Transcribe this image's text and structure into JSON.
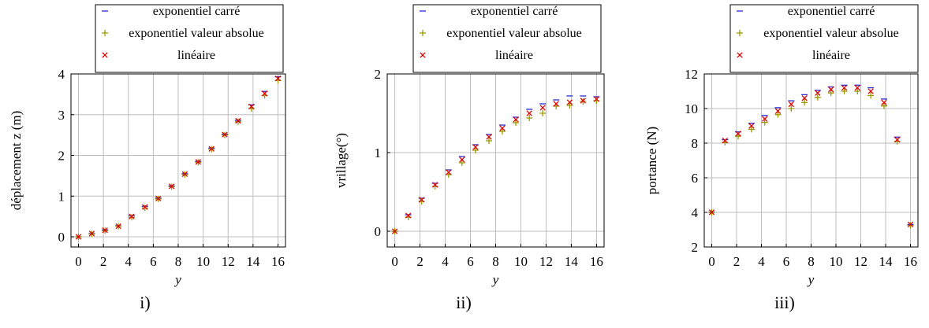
{
  "legend": [
    "exponentiel carré",
    "exponentiel valeur absolue",
    "linéaire"
  ],
  "colors": {
    "exponentiel carré": "#2a2ad6",
    "exponentiel valeur absolue": "#9a9a00",
    "linéaire": "#e00000",
    "grid": "#bdbdbd"
  },
  "captions": [
    "i)",
    "ii)",
    "iii)"
  ],
  "chart_data": [
    {
      "type": "scatter",
      "xlabel": "y",
      "ylabel": "déplacement z (m)",
      "xlim": [
        -0.6,
        16.6
      ],
      "ylim": [
        -0.25,
        4.0
      ],
      "xticks": [
        0,
        2,
        4,
        6,
        8,
        10,
        12,
        14,
        16
      ],
      "yticks": [
        0,
        1,
        2,
        3,
        4
      ],
      "x": [
        0,
        1.07,
        2.13,
        3.2,
        4.27,
        5.33,
        6.4,
        7.47,
        8.53,
        9.6,
        10.67,
        11.73,
        12.8,
        13.87,
        14.93,
        16
      ],
      "series": [
        {
          "name": "exponentiel carré",
          "values": [
            0,
            0.08,
            0.17,
            0.27,
            0.52,
            0.75,
            0.95,
            1.25,
            1.55,
            1.85,
            2.18,
            2.52,
            2.86,
            3.24,
            3.57,
            3.93
          ]
        },
        {
          "name": "exponentiel valeur absolue",
          "values": [
            0,
            0.07,
            0.15,
            0.26,
            0.48,
            0.71,
            0.93,
            1.23,
            1.53,
            1.83,
            2.15,
            2.5,
            2.83,
            3.15,
            3.47,
            3.84
          ]
        },
        {
          "name": "linéaire",
          "values": [
            0,
            0.08,
            0.16,
            0.26,
            0.5,
            0.73,
            0.94,
            1.24,
            1.54,
            1.84,
            2.16,
            2.51,
            2.85,
            3.2,
            3.52,
            3.89
          ]
        }
      ]
    },
    {
      "type": "scatter",
      "xlabel": "y",
      "ylabel": "vrillage(°)",
      "xlim": [
        -0.6,
        16.6
      ],
      "ylim": [
        -0.2,
        2.0
      ],
      "xticks": [
        0,
        2,
        4,
        6,
        8,
        10,
        12,
        14,
        16
      ],
      "yticks": [
        0,
        1,
        2
      ],
      "x": [
        0,
        1.07,
        2.13,
        3.2,
        4.27,
        5.33,
        6.4,
        7.47,
        8.53,
        9.6,
        10.67,
        11.73,
        12.8,
        13.87,
        14.93,
        16
      ],
      "series": [
        {
          "name": "exponentiel carré",
          "values": [
            0,
            0.21,
            0.42,
            0.61,
            0.78,
            0.95,
            1.1,
            1.23,
            1.35,
            1.45,
            1.55,
            1.62,
            1.67,
            1.72,
            1.72,
            1.71
          ]
        },
        {
          "name": "exponentiel valeur absolue",
          "values": [
            0,
            0.18,
            0.38,
            0.57,
            0.72,
            0.87,
            1.03,
            1.15,
            1.27,
            1.38,
            1.44,
            1.5,
            1.59,
            1.6,
            1.65,
            1.66
          ]
        },
        {
          "name": "linéaire",
          "values": [
            0,
            0.2,
            0.4,
            0.59,
            0.75,
            0.91,
            1.07,
            1.2,
            1.31,
            1.42,
            1.5,
            1.57,
            1.62,
            1.64,
            1.66,
            1.68
          ]
        }
      ]
    },
    {
      "type": "scatter",
      "xlabel": "y",
      "ylabel": "portance (N)",
      "xlim": [
        -0.6,
        16.6
      ],
      "ylim": [
        2.0,
        12.0
      ],
      "xticks": [
        0,
        2,
        4,
        6,
        8,
        10,
        12,
        14,
        16
      ],
      "yticks": [
        2,
        4,
        6,
        8,
        10,
        12
      ],
      "x": [
        0,
        1.07,
        2.13,
        3.2,
        4.27,
        5.33,
        6.4,
        7.47,
        8.53,
        9.6,
        10.67,
        11.73,
        12.8,
        13.87,
        14.93,
        16
      ],
      "series": [
        {
          "name": "exponentiel carré",
          "values": [
            4.02,
            8.2,
            8.65,
            9.15,
            9.6,
            10.05,
            10.45,
            10.8,
            11.05,
            11.25,
            11.35,
            11.35,
            11.2,
            10.55,
            8.35,
            3.3
          ]
        },
        {
          "name": "exponentiel valeur absolue",
          "values": [
            4.0,
            8.05,
            8.4,
            8.8,
            9.2,
            9.65,
            10.0,
            10.35,
            10.65,
            10.9,
            11.0,
            11.0,
            10.75,
            10.15,
            8.1,
            3.25
          ]
        },
        {
          "name": "linéaire",
          "values": [
            4.01,
            8.15,
            8.55,
            9.0,
            9.4,
            9.85,
            10.25,
            10.6,
            10.9,
            11.1,
            11.2,
            11.2,
            11.0,
            10.35,
            8.2,
            3.3
          ]
        }
      ]
    }
  ]
}
